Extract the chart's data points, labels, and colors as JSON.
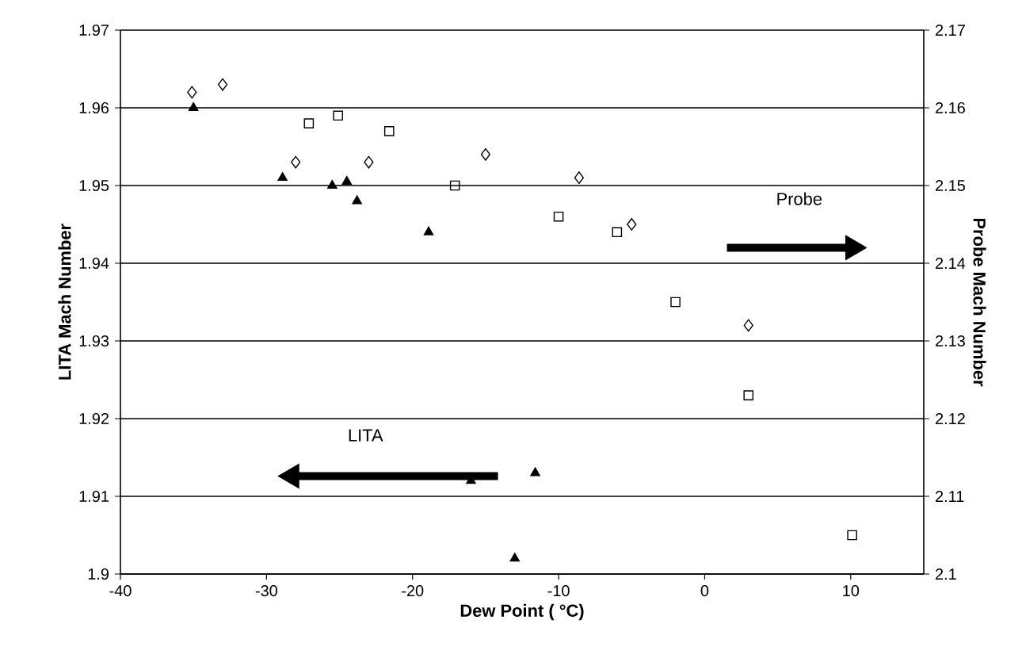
{
  "chart_data": {
    "type": "scatter",
    "xlabel": "Dew Point ( °C)",
    "ylabel": "LITA Mach Number",
    "y2label": "Probe Mach Number",
    "xlim": [
      -40,
      15
    ],
    "xticks": [
      -40,
      -30,
      -20,
      -10,
      0,
      10
    ],
    "ylim": [
      1.9,
      1.97
    ],
    "yticks": [
      1.9,
      1.91,
      1.92,
      1.93,
      1.94,
      1.95,
      1.96,
      1.97
    ],
    "y2lim": [
      2.1,
      2.17
    ],
    "y2ticks": [
      2.1,
      2.11,
      2.12,
      2.13,
      2.14,
      2.15,
      2.16,
      2.17
    ],
    "grid": "y",
    "annotations": [
      "LITA",
      "Probe"
    ],
    "series": [
      {
        "color": "#000000",
        "marker": "triangle",
        "x": [
          -35,
          -28.9,
          -25.5,
          -24.5,
          -23.8,
          -18.9,
          -16.0,
          -11.6,
          -13.0
        ],
        "values": [
          1.96,
          1.951,
          1.95,
          1.9505,
          1.948,
          1.944,
          1.912,
          1.913,
          1.902
        ]
      },
      {
        "color": "#000000",
        "marker": "diamond",
        "axis": "y2",
        "x": [
          -35.1,
          -33.0,
          -28.0,
          -23.0,
          -15.0,
          -8.6,
          -5.0,
          3.0
        ],
        "values": [
          2.162,
          2.163,
          2.153,
          2.153,
          2.154,
          2.151,
          2.145,
          2.132
        ]
      },
      {
        "color": "#000000",
        "marker": "square",
        "axis": "y2",
        "x": [
          -27.1,
          -25.1,
          -21.6,
          -17.1,
          -10.0,
          -6.0,
          -2.0,
          3.0,
          10.1
        ],
        "values": [
          2.158,
          2.159,
          2.157,
          2.15,
          2.146,
          2.144,
          2.135,
          2.123,
          2.105
        ]
      }
    ]
  }
}
